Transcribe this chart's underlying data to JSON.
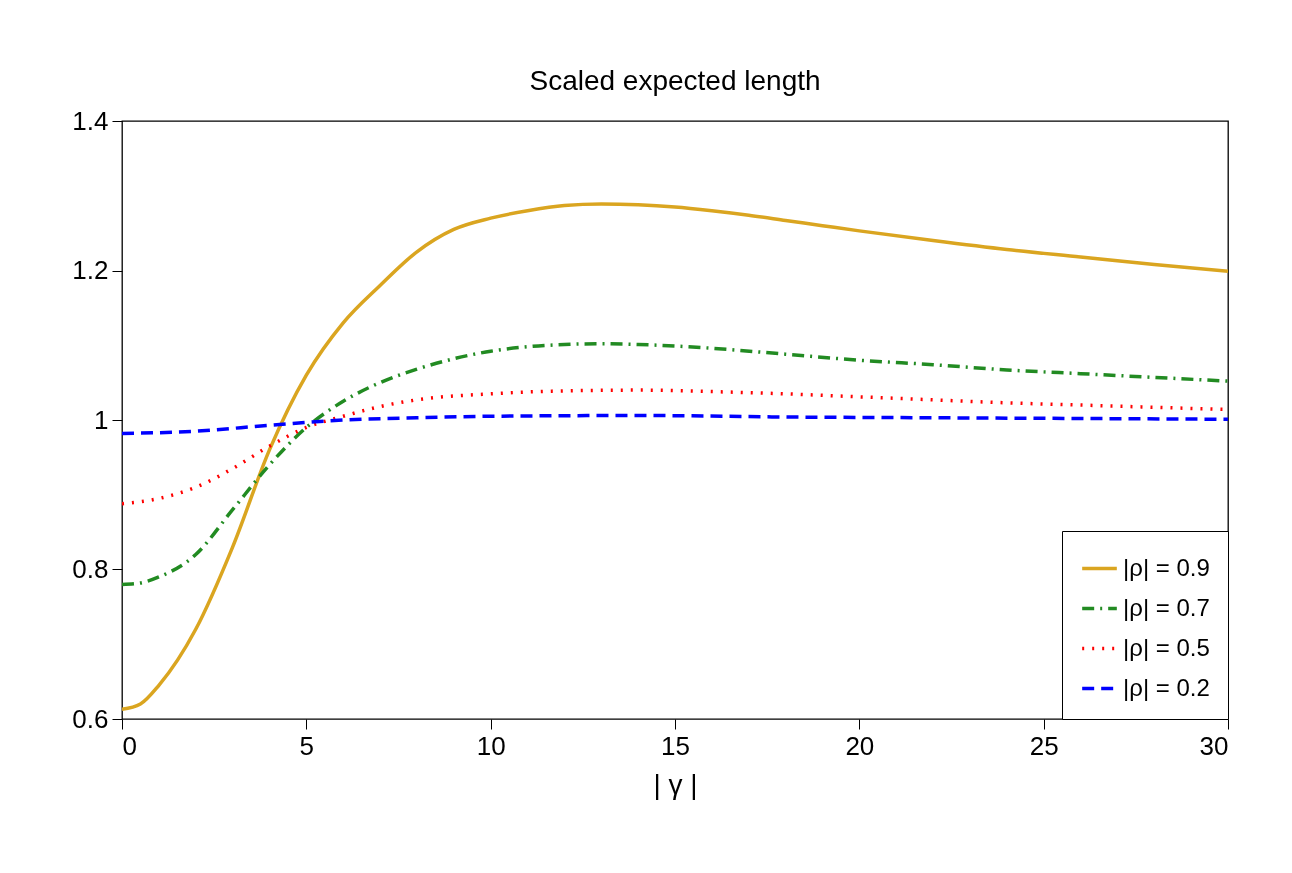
{
  "chart_data": {
    "type": "line",
    "title": "Scaled expected length",
    "xlabel": "| γ |",
    "xlim": [
      0,
      30
    ],
    "xticks": [
      0,
      5,
      10,
      15,
      20,
      25,
      30
    ],
    "ylim": [
      0.6,
      1.4
    ],
    "yticks": [
      0.6,
      0.8,
      1,
      1.2,
      1.4
    ],
    "grid": false,
    "legend": "bottom right",
    "marker": "none",
    "series": [
      {
        "name": "|ρ| = 0.9",
        "color": "#daa520",
        "line_style": "solid",
        "x": [
          0,
          0.5,
          1,
          2,
          3,
          4,
          5,
          6,
          7,
          8,
          9,
          10,
          11,
          12,
          13,
          14,
          15,
          16,
          17,
          18,
          19,
          20,
          22,
          24,
          26,
          28,
          30
        ],
        "values": [
          0.613,
          0.62,
          0.645,
          0.72,
          0.83,
          0.96,
          1.06,
          1.13,
          1.18,
          1.225,
          1.255,
          1.27,
          1.28,
          1.287,
          1.289,
          1.288,
          1.285,
          1.28,
          1.274,
          1.267,
          1.26,
          1.253,
          1.24,
          1.228,
          1.218,
          1.208,
          1.199
        ]
      },
      {
        "name": "|ρ| = 0.7",
        "color": "#228b22",
        "line_style": "dashdot",
        "x": [
          0,
          0.5,
          1,
          2,
          3,
          4,
          5,
          6,
          7,
          8,
          9,
          10,
          11,
          12,
          13,
          14,
          15,
          16,
          18,
          20,
          22,
          24,
          26,
          28,
          30
        ],
        "values": [
          0.78,
          0.782,
          0.79,
          0.82,
          0.88,
          0.94,
          0.99,
          1.025,
          1.05,
          1.068,
          1.082,
          1.092,
          1.098,
          1.101,
          1.102,
          1.101,
          1.099,
          1.096,
          1.088,
          1.08,
          1.074,
          1.067,
          1.062,
          1.057,
          1.052
        ]
      },
      {
        "name": "|ρ| = 0.5",
        "color": "#ff0000",
        "line_style": "dotted",
        "x": [
          0,
          1,
          2,
          3,
          4,
          5,
          6,
          7,
          8,
          10,
          12,
          14,
          16,
          18,
          20,
          22,
          24,
          26,
          28,
          30
        ],
        "values": [
          0.888,
          0.895,
          0.91,
          0.935,
          0.965,
          0.99,
          1.005,
          1.018,
          1.027,
          1.035,
          1.039,
          1.04,
          1.038,
          1.035,
          1.031,
          1.027,
          1.023,
          1.02,
          1.017,
          1.014
        ]
      },
      {
        "name": "|ρ| = 0.2",
        "color": "#0000ff",
        "line_style": "dashed",
        "x": [
          0,
          2,
          4,
          6,
          8,
          10,
          14,
          18,
          22,
          26,
          30
        ],
        "values": [
          0.982,
          0.985,
          0.993,
          1.0,
          1.003,
          1.005,
          1.006,
          1.004,
          1.003,
          1.002,
          1.001
        ]
      }
    ]
  }
}
